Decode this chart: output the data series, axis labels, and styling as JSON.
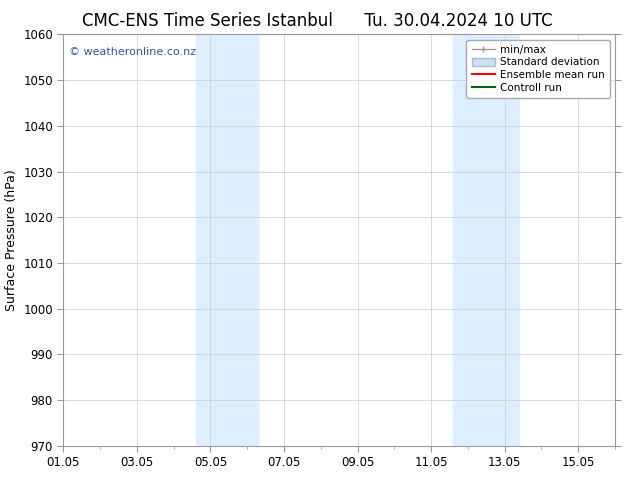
{
  "title_left": "CMC-ENS Time Series Istanbul",
  "title_right": "Tu. 30.04.2024 10 UTC",
  "ylabel": "Surface Pressure (hPa)",
  "ylim": [
    970,
    1060
  ],
  "yticks": [
    970,
    980,
    990,
    1000,
    1010,
    1020,
    1030,
    1040,
    1050,
    1060
  ],
  "xtick_labels": [
    "01.05",
    "03.05",
    "05.05",
    "07.05",
    "09.05",
    "11.05",
    "13.05",
    "15.05"
  ],
  "xtick_positions": [
    0,
    2,
    4,
    6,
    8,
    10,
    12,
    14
  ],
  "xlim": [
    0,
    15
  ],
  "shaded_regions": [
    {
      "x_start": 3.6,
      "x_end": 5.3,
      "color": "#ddeeff"
    },
    {
      "x_start": 10.6,
      "x_end": 12.4,
      "color": "#ddeeff"
    }
  ],
  "background_color": "#ffffff",
  "watermark_text": "© weatheronline.co.nz",
  "watermark_color": "#3355bb",
  "legend_entries": [
    {
      "label": "min/max",
      "color": "#999999"
    },
    {
      "label": "Standard deviation",
      "color": "#cce0f0"
    },
    {
      "label": "Ensemble mean run",
      "color": "#ff0000"
    },
    {
      "label": "Controll run",
      "color": "#006600"
    }
  ],
  "title_fontsize": 12,
  "tick_label_fontsize": 8.5,
  "ylabel_fontsize": 9,
  "legend_fontsize": 7.5,
  "grid_color": "#cccccc",
  "spine_color": "#999999"
}
